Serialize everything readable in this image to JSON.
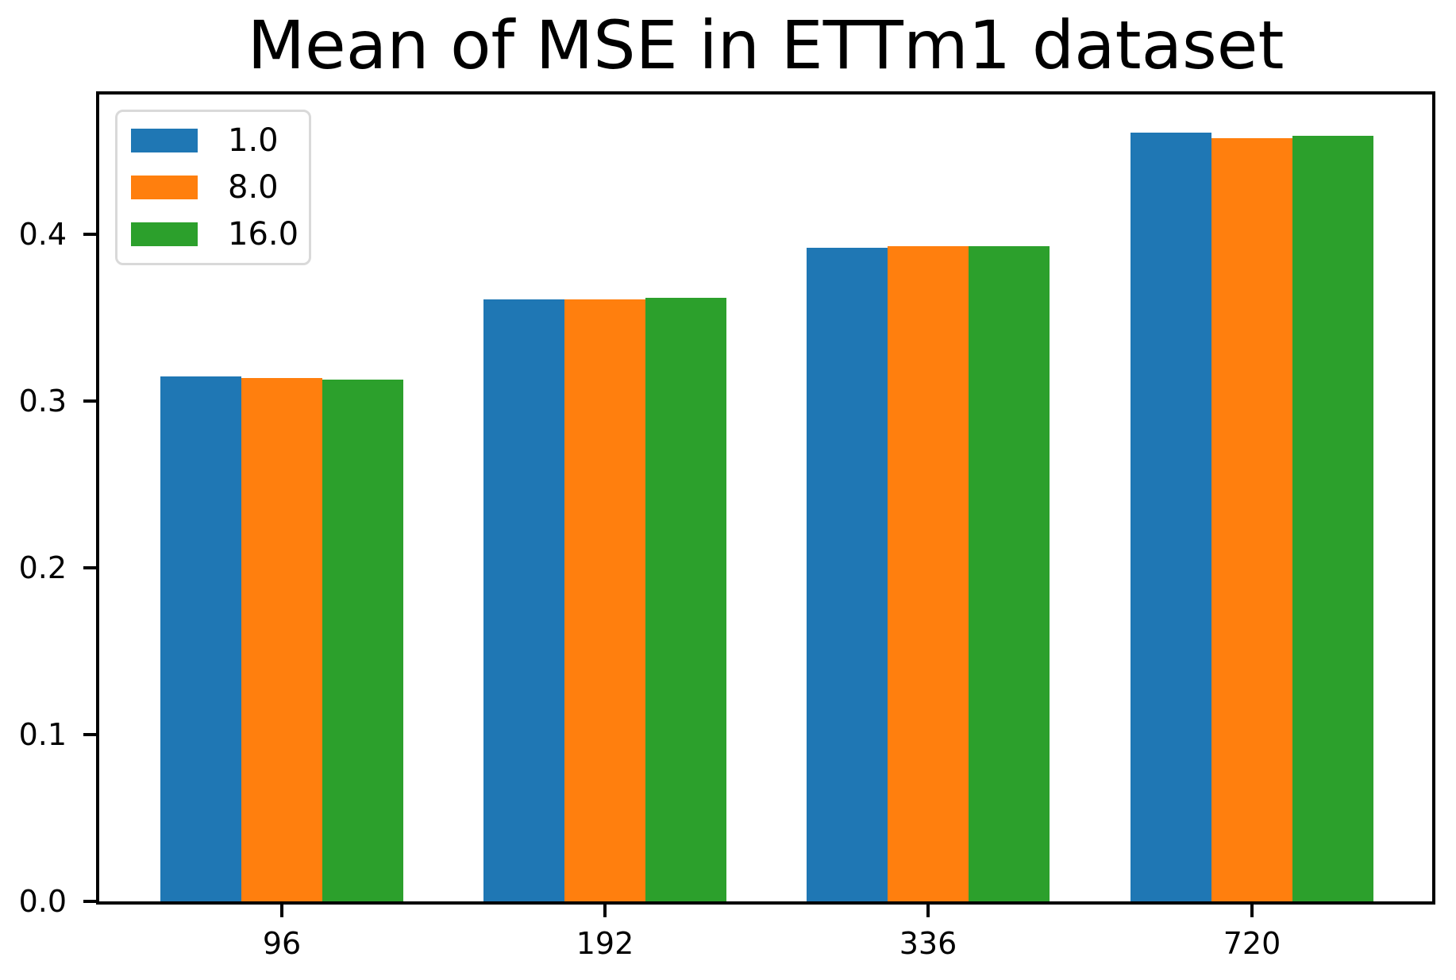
{
  "title": "Mean of MSE in ETTm1 dataset",
  "chart_data": {
    "type": "bar",
    "title": "Mean of MSE in ETTm1 dataset",
    "categories": [
      "96",
      "192",
      "336",
      "720"
    ],
    "series": [
      {
        "name": "1.0",
        "color": "#1f77b4",
        "values": [
          0.315,
          0.361,
          0.392,
          0.461
        ]
      },
      {
        "name": "8.0",
        "color": "#ff7f0e",
        "values": [
          0.314,
          0.361,
          0.393,
          0.458
        ]
      },
      {
        "name": "16.0",
        "color": "#2ca02c",
        "values": [
          0.313,
          0.362,
          0.393,
          0.459
        ]
      }
    ],
    "xlabel": "",
    "ylabel": "",
    "ylim": [
      0,
      0.484
    ],
    "yticks": [
      0.0,
      0.1,
      0.2,
      0.3,
      0.4
    ],
    "ytick_labels": [
      "0.0",
      "0.1",
      "0.2",
      "0.3",
      "0.4"
    ],
    "grid": false,
    "legend_position": "upper left",
    "axis_color": "#000000",
    "background_color": "#ffffff"
  }
}
